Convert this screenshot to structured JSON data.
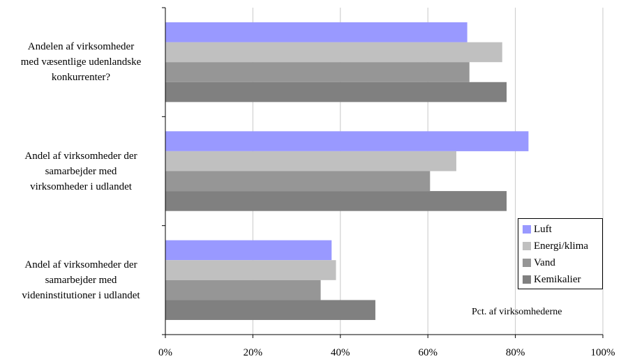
{
  "chart_data": {
    "type": "bar",
    "orientation": "horizontal",
    "categories": [
      [
        "Andelen af virksomheder",
        "med væsentlige udenlandske",
        "konkurrenter?"
      ],
      [
        "Andel af virksomheder der",
        "samarbejder med",
        "virksomheder i udlandet"
      ],
      [
        "Andel af virksomheder der",
        "samarbejder med",
        "videninstitutioner i udlandet"
      ]
    ],
    "series": [
      {
        "name": "Luft",
        "color": "#9999ff",
        "values": [
          69,
          83,
          38
        ]
      },
      {
        "name": "Energi/klima",
        "color": "#c0c0c0",
        "values": [
          77,
          66.5,
          39
        ]
      },
      {
        "name": "Vand",
        "color": "#969696",
        "values": [
          69.5,
          60.5,
          35.5
        ]
      },
      {
        "name": "Kemikalier",
        "color": "#808080",
        "values": [
          78,
          78,
          48
        ]
      }
    ],
    "xticks": [
      "0%",
      "20%",
      "40%",
      "60%",
      "80%",
      "100%"
    ],
    "xlim": [
      0,
      100
    ],
    "grid": true,
    "legend_position": "bottom-right",
    "annotation": "Pct. af virksomhederne"
  }
}
